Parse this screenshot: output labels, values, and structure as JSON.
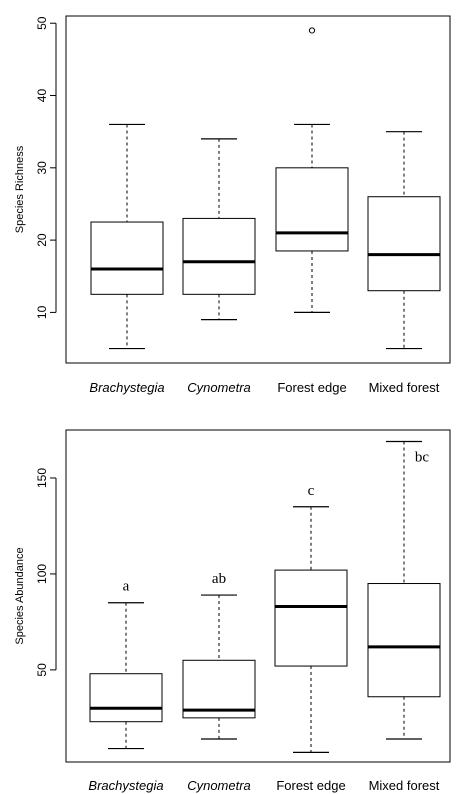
{
  "chart_data": [
    {
      "type": "boxplot",
      "ylabel": "Species Richness",
      "ylim": [
        3,
        51
      ],
      "yticks": [
        10,
        20,
        30,
        40,
        50
      ],
      "categories": [
        "Brachystegia",
        "Cynometra",
        "Forest edge",
        "Mixed forest"
      ],
      "italic_categories": [
        true,
        true,
        false,
        false
      ],
      "boxes": [
        {
          "whisker_low": 5,
          "q1": 12.5,
          "median": 16,
          "q3": 22.5,
          "whisker_high": 36,
          "outliers": []
        },
        {
          "whisker_low": 9,
          "q1": 12.5,
          "median": 17,
          "q3": 23,
          "whisker_high": 34,
          "outliers": []
        },
        {
          "whisker_low": 10,
          "q1": 18.5,
          "median": 21,
          "q3": 30,
          "whisker_high": 36,
          "outliers": [
            49
          ]
        },
        {
          "whisker_low": 5,
          "q1": 13,
          "median": 18,
          "q3": 26,
          "whisker_high": 35,
          "outliers": []
        }
      ],
      "group_letters": [
        "",
        "",
        "",
        ""
      ]
    },
    {
      "type": "boxplot",
      "ylabel": "Species Abundance",
      "ylim": [
        2,
        175
      ],
      "yticks": [
        50,
        100,
        150
      ],
      "categories": [
        "Brachystegia",
        "Cynometra",
        "Forest edge",
        "Mixed forest"
      ],
      "italic_categories": [
        true,
        true,
        false,
        false
      ],
      "boxes": [
        {
          "whisker_low": 9,
          "q1": 23,
          "median": 30,
          "q3": 48,
          "whisker_high": 85,
          "outliers": []
        },
        {
          "whisker_low": 14,
          "q1": 25,
          "median": 29,
          "q3": 55,
          "whisker_high": 89,
          "outliers": []
        },
        {
          "whisker_low": 7,
          "q1": 52,
          "median": 83,
          "q3": 102,
          "whisker_high": 135,
          "outliers": []
        },
        {
          "whisker_low": 14,
          "q1": 36,
          "median": 62,
          "q3": 95,
          "whisker_high": 169,
          "outliers": []
        }
      ],
      "group_letters": [
        "a",
        "ab",
        "c",
        "bc"
      ]
    }
  ]
}
